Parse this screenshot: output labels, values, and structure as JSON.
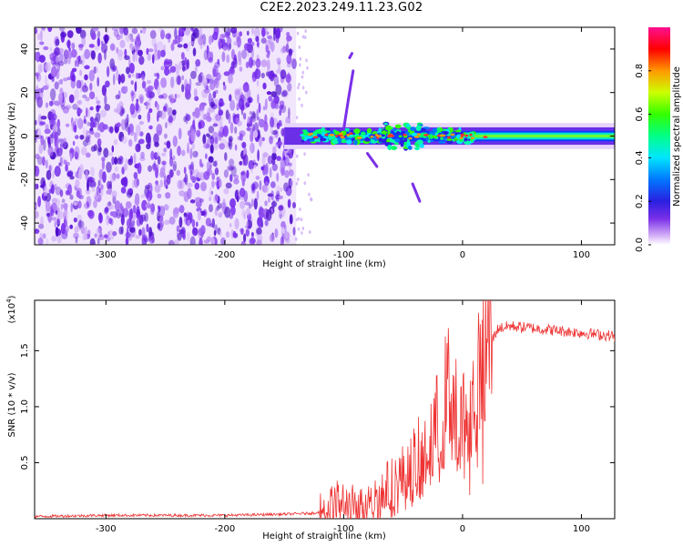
{
  "title": "C2E2.2023.249.11.23.G02",
  "chart_data": [
    {
      "type": "heatmap",
      "xlabel": "Height of straight line (km)",
      "ylabel": "Frequency (Hz)",
      "xlim": [
        -360,
        128
      ],
      "ylim": [
        -50,
        50
      ],
      "xticks": [
        -300,
        -200,
        -100,
        0,
        100
      ],
      "yticks": [
        -40,
        -20,
        0,
        20,
        40
      ],
      "colorbar": {
        "label": "Normalized spectral amplitude",
        "ticks": [
          0.0,
          0.2,
          0.4,
          0.6,
          0.8
        ],
        "range": [
          0,
          1
        ],
        "colors": [
          "#ffffff",
          "#cfa8f5",
          "#7a2fe8",
          "#2a1fe0",
          "#0077ff",
          "#00e5ff",
          "#00ff66",
          "#66ff00",
          "#ffff00",
          "#ff9900",
          "#ff0000",
          "#ff1090"
        ]
      },
      "regions": [
        {
          "description": "broadband noise",
          "x": [
            -360,
            -140
          ],
          "y": [
            -50,
            50
          ],
          "amplitude": 0.1
        },
        {
          "description": "carrier line",
          "x": [
            -150,
            128
          ],
          "y": [
            -2,
            2
          ],
          "amplitude": 0.6
        }
      ]
    },
    {
      "type": "line",
      "xlabel": "Height of straight line (km)",
      "ylabel": "SNR (10 * v/v)",
      "multiplier_label": "(x10",
      "multiplier_exp": "4",
      "multiplier_close": ")",
      "xlim": [
        -360,
        128
      ],
      "ylim": [
        0,
        1.95
      ],
      "xticks": [
        -300,
        -200,
        -100,
        0,
        100
      ],
      "yticks": [
        0.5,
        1.0,
        1.5
      ],
      "ytick_labels": [
        "0.5",
        "1.0",
        "1.5"
      ],
      "color": "#ee3333",
      "series": [
        {
          "x": [
            -360,
            -300,
            -200,
            -150,
            -125,
            -115,
            -105,
            -95,
            -85,
            -75,
            -65,
            -55,
            -45,
            -35,
            -25,
            -18,
            -12,
            -8,
            -4,
            0,
            5,
            10,
            15,
            20,
            25,
            30,
            40,
            60,
            80,
            100,
            128
          ],
          "y": [
            0.02,
            0.03,
            0.03,
            0.04,
            0.05,
            0.08,
            0.14,
            0.12,
            0.1,
            0.16,
            0.25,
            0.32,
            0.42,
            0.55,
            0.72,
            0.9,
            1.15,
            1.1,
            0.8,
            0.85,
            0.95,
            1.05,
            1.25,
            1.5,
            1.6,
            1.7,
            1.72,
            1.7,
            1.68,
            1.66,
            1.63
          ]
        }
      ]
    }
  ]
}
